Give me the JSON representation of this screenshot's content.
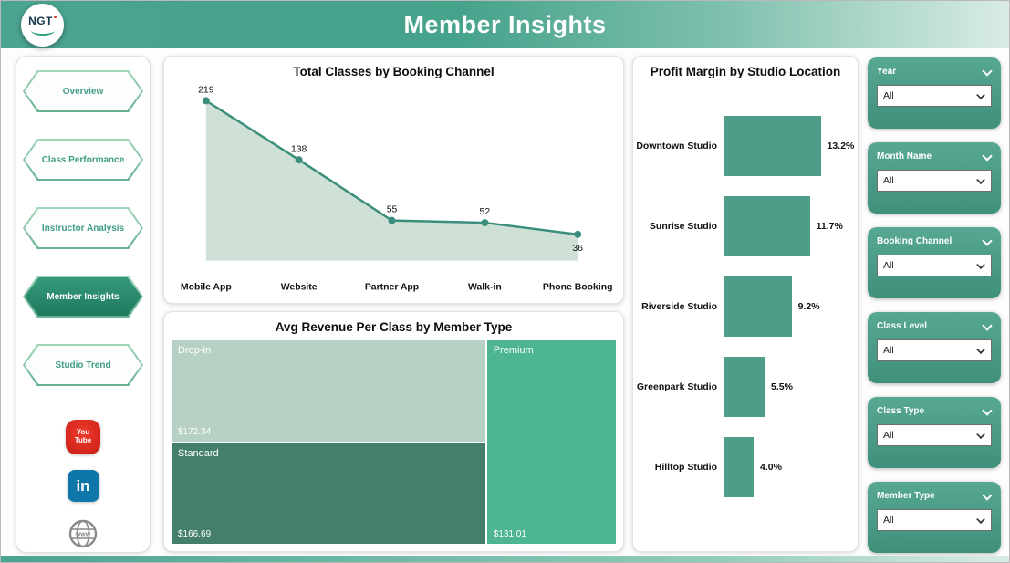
{
  "header": {
    "title": "Member Insights",
    "logo_text": "NGT"
  },
  "nav": {
    "items": [
      {
        "label": "Overview",
        "active": false
      },
      {
        "label": "Class Performance",
        "active": false
      },
      {
        "label": "Instructor Analysis",
        "active": false
      },
      {
        "label": "Member Insights",
        "active": true
      },
      {
        "label": "Studio Trend",
        "active": false
      }
    ]
  },
  "social": {
    "youtube_line1": "You",
    "youtube_line2": "Tube",
    "linkedin_label": "in",
    "globe_label": "www"
  },
  "filters": [
    {
      "label": "Year",
      "value": "All"
    },
    {
      "label": "Month Name",
      "value": "All"
    },
    {
      "label": "Booking Channel",
      "value": "All"
    },
    {
      "label": "Class Level",
      "value": "All"
    },
    {
      "label": "Class Type",
      "value": "All"
    },
    {
      "label": "Member Type",
      "value": "All"
    }
  ],
  "chart_data": [
    {
      "type": "area",
      "title": "Total Classes by Booking Channel",
      "categories": [
        "Mobile App",
        "Website",
        "Partner App",
        "Walk-in",
        "Phone Booking"
      ],
      "values": [
        219,
        138,
        55,
        52,
        36
      ],
      "value_labels": [
        "219",
        "138",
        "55",
        "52",
        "36"
      ],
      "ylim": [
        0,
        230
      ],
      "legend": "none",
      "grid": false
    },
    {
      "type": "treemap",
      "title": "Avg Revenue Per Class by Member Type",
      "items": [
        {
          "name": "Drop-in",
          "value": 172.34,
          "label": "$172.34",
          "color": "#b7d2c4"
        },
        {
          "name": "Standard",
          "value": 166.69,
          "label": "$166.69",
          "color": "#437f6c"
        },
        {
          "name": "Premium",
          "value": 131.01,
          "label": "$131.01",
          "color": "#4db590"
        }
      ]
    },
    {
      "type": "bar",
      "title": "Profit Margin by Studio Location",
      "orientation": "horizontal",
      "categories": [
        "Downtown Studio",
        "Sunrise Studio",
        "Riverside Studio",
        "Greenpark Studio",
        "Hilltop Studio"
      ],
      "values": [
        13.2,
        11.7,
        9.2,
        5.5,
        4.0
      ],
      "value_labels": [
        "13.2%",
        "11.7%",
        "9.2%",
        "5.5%",
        "4.0%"
      ],
      "xlim": [
        0,
        14
      ],
      "grid": false
    }
  ],
  "colors": {
    "accent": "#40997f",
    "line": "#3a8e7b",
    "area_fill": "#cfe1d7",
    "bar": "#4f9c88",
    "nav_active": "#2c8f73",
    "filter_card": "#4d9f8b",
    "youtube_red": "#d6281e",
    "linkedin_blue": "#0e76a8"
  }
}
